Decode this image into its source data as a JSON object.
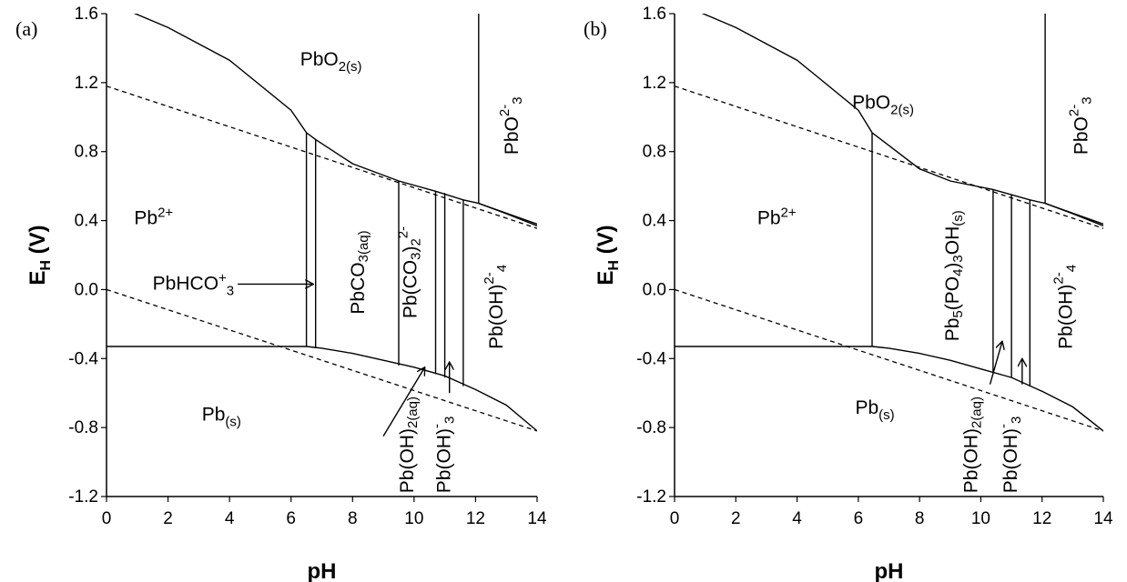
{
  "chart_data": [
    {
      "type": "line",
      "panel_label": "(a)",
      "xlabel": "pH",
      "ylabel_main": "E",
      "ylabel_sub": "H",
      "ylabel_unit": " (V)",
      "xlim": [
        0,
        14
      ],
      "ylim": [
        -1.2,
        1.6
      ],
      "x_ticks": [
        "0",
        "2",
        "4",
        "6",
        "8",
        "10",
        "12",
        "14"
      ],
      "y_ticks": [
        "-1.2",
        "-0.8",
        "-0.4",
        "0.0",
        "0.4",
        "0.8",
        "1.2",
        "1.6"
      ],
      "water_lines": [
        {
          "points": [
            [
              0,
              1.18
            ],
            [
              14,
              0.355
            ]
          ]
        },
        {
          "points": [
            [
              0,
              0.0
            ],
            [
              14,
              -0.82
            ]
          ]
        }
      ],
      "boundaries": [
        {
          "points": [
            [
              0,
              1.67
            ],
            [
              2,
              1.52
            ],
            [
              4,
              1.33
            ],
            [
              6,
              1.04
            ],
            [
              6.5,
              0.91
            ],
            [
              6.8,
              0.87
            ],
            [
              8,
              0.73
            ],
            [
              9.5,
              0.63
            ],
            [
              10.7,
              0.57
            ],
            [
              11.6,
              0.52
            ],
            [
              12.1,
              0.5
            ],
            [
              13,
              0.44
            ],
            [
              14,
              0.37
            ]
          ]
        },
        {
          "points": [
            [
              12.1,
              0.5
            ],
            [
              14,
              0.38
            ]
          ]
        },
        {
          "points": [
            [
              0,
              -0.33
            ],
            [
              6.5,
              -0.33
            ],
            [
              7,
              -0.34
            ],
            [
              8,
              -0.37
            ],
            [
              9,
              -0.41
            ],
            [
              10,
              -0.45
            ],
            [
              11,
              -0.5
            ],
            [
              12,
              -0.58
            ],
            [
              13,
              -0.67
            ],
            [
              14,
              -0.82
            ]
          ]
        },
        {
          "points": [
            [
              6.5,
              0.91
            ],
            [
              6.5,
              -0.33
            ]
          ]
        },
        {
          "points": [
            [
              6.8,
              0.87
            ],
            [
              6.8,
              -0.34
            ]
          ]
        },
        {
          "points": [
            [
              9.5,
              0.63
            ],
            [
              9.5,
              -0.44
            ]
          ]
        },
        {
          "points": [
            [
              10.7,
              0.57
            ],
            [
              10.7,
              -0.49
            ]
          ]
        },
        {
          "points": [
            [
              11.0,
              0.56
            ],
            [
              11.0,
              -0.51
            ]
          ]
        },
        {
          "points": [
            [
              11.6,
              0.52
            ],
            [
              11.6,
              -0.56
            ]
          ]
        },
        {
          "points": [
            [
              12.1,
              1.6
            ],
            [
              12.1,
              0.5
            ]
          ]
        }
      ],
      "arrows": [
        {
          "from": [
            9.0,
            -0.85
          ],
          "to": [
            10.35,
            -0.45
          ]
        },
        {
          "from": [
            11.15,
            -0.6
          ],
          "to": [
            11.15,
            -0.42
          ]
        }
      ],
      "regions": [
        {
          "main": "PbO",
          "sub": "2(s)",
          "x": 7.3,
          "y": 1.3,
          "anchor": "middle"
        },
        {
          "main": "Pb",
          "sup": "2+",
          "x": 0.9,
          "y": 0.38,
          "anchor": "start"
        },
        {
          "main": "PbHCO",
          "sub": "3",
          "sup": "+",
          "x": 1.5,
          "y": 0.0,
          "anchor": "start",
          "arrow_to": [
            6.75,
            0.08
          ]
        },
        {
          "main": "Pb",
          "sub": "(s)",
          "x": 3.1,
          "y": -0.76,
          "anchor": "start"
        },
        {
          "main": "PbCO",
          "sub": "3(aq)",
          "x": 8.2,
          "y": 0.1,
          "rotate": true
        },
        {
          "main": "Pb(CO",
          "sub": "3",
          "tail": ")",
          "sub2": "2",
          "sup": "2-",
          "x": 9.9,
          "y": 0.1,
          "rotate": true
        },
        {
          "main": "Pb(OH)",
          "sup": "2-",
          "sub": "4",
          "x": 12.7,
          "y": -0.1,
          "rotate": true
        },
        {
          "main": "PbO",
          "sub": "3",
          "sup": "2-",
          "x": 13.2,
          "y": 0.95,
          "rotate": true
        },
        {
          "main": "Pb(OH)",
          "sub": "2(aq)",
          "x": 9.8,
          "y": -1.18,
          "rotate": true,
          "anchor": "start"
        },
        {
          "main": "Pb(OH)",
          "sub": "3",
          "sup": "-",
          "x": 11.0,
          "y": -1.18,
          "rotate": true,
          "anchor": "start"
        }
      ]
    },
    {
      "type": "line",
      "panel_label": "(b)",
      "xlabel": "pH",
      "ylabel_main": "E",
      "ylabel_sub": "H",
      "ylabel_unit": " (V)",
      "xlim": [
        0,
        14
      ],
      "ylim": [
        -1.2,
        1.6
      ],
      "x_ticks": [
        "0",
        "2",
        "4",
        "6",
        "8",
        "10",
        "12",
        "14"
      ],
      "y_ticks": [
        "-1.2",
        "-0.8",
        "-0.4",
        "0.0",
        "0.4",
        "0.8",
        "1.2",
        "1.6"
      ],
      "water_lines": [
        {
          "points": [
            [
              0,
              1.18
            ],
            [
              14,
              0.355
            ]
          ]
        },
        {
          "points": [
            [
              0,
              0.0
            ],
            [
              14,
              -0.82
            ]
          ]
        }
      ],
      "boundaries": [
        {
          "points": [
            [
              0,
              1.67
            ],
            [
              2,
              1.52
            ],
            [
              4,
              1.33
            ],
            [
              6,
              1.04
            ],
            [
              6.45,
              0.91
            ],
            [
              8,
              0.7
            ],
            [
              9,
              0.63
            ],
            [
              10.4,
              0.58
            ],
            [
              11.6,
              0.52
            ],
            [
              12.1,
              0.5
            ],
            [
              13,
              0.44
            ],
            [
              14,
              0.37
            ]
          ]
        },
        {
          "points": [
            [
              12.1,
              0.5
            ],
            [
              14,
              0.38
            ]
          ]
        },
        {
          "points": [
            [
              0,
              -0.33
            ],
            [
              6.45,
              -0.33
            ],
            [
              7,
              -0.34
            ],
            [
              8,
              -0.37
            ],
            [
              9,
              -0.41
            ],
            [
              10,
              -0.46
            ],
            [
              11,
              -0.51
            ],
            [
              12,
              -0.59
            ],
            [
              13,
              -0.68
            ],
            [
              14,
              -0.82
            ]
          ]
        },
        {
          "points": [
            [
              6.45,
              0.91
            ],
            [
              6.45,
              -0.33
            ]
          ]
        },
        {
          "points": [
            [
              10.4,
              0.58
            ],
            [
              10.4,
              -0.48
            ]
          ]
        },
        {
          "points": [
            [
              11.0,
              0.55
            ],
            [
              11.0,
              -0.51
            ]
          ]
        },
        {
          "points": [
            [
              11.6,
              0.52
            ],
            [
              11.6,
              -0.56
            ]
          ]
        },
        {
          "points": [
            [
              12.1,
              1.6
            ],
            [
              12.1,
              0.5
            ]
          ]
        }
      ],
      "arrows": [
        {
          "from": [
            10.3,
            -0.55
          ],
          "to": [
            10.7,
            -0.3
          ]
        },
        {
          "from": [
            11.35,
            -0.55
          ],
          "to": [
            11.35,
            -0.4
          ]
        }
      ],
      "regions": [
        {
          "main": "PbO",
          "sub": "2(s)",
          "x": 5.8,
          "y": 1.05,
          "anchor": "start"
        },
        {
          "main": "Pb",
          "sup": "2+",
          "x": 2.7,
          "y": 0.38,
          "anchor": "start"
        },
        {
          "main": "Pb",
          "sub": "(s)",
          "x": 5.9,
          "y": -0.72,
          "anchor": "start"
        },
        {
          "main": "Pb",
          "sub": "5",
          "tail": "(PO",
          "sub2": "4",
          "tail2": ")",
          "sub3": "3",
          "tail3": "OH",
          "sub4": "(s)",
          "x": 9.1,
          "y": 0.08,
          "rotate": true
        },
        {
          "main": "Pb(OH)",
          "sup": "2-",
          "sub": "4",
          "x": 12.8,
          "y": -0.1,
          "rotate": true
        },
        {
          "main": "PbO",
          "sub": "3",
          "sup": "2-",
          "x": 13.3,
          "y": 0.95,
          "rotate": true
        },
        {
          "main": "Pb(OH)",
          "sub": "2(aq)",
          "x": 9.7,
          "y": -1.18,
          "rotate": true,
          "anchor": "start"
        },
        {
          "main": "Pb(OH)",
          "sub": "3",
          "sup": "-",
          "x": 11.0,
          "y": -1.18,
          "rotate": true,
          "anchor": "start"
        }
      ]
    }
  ]
}
